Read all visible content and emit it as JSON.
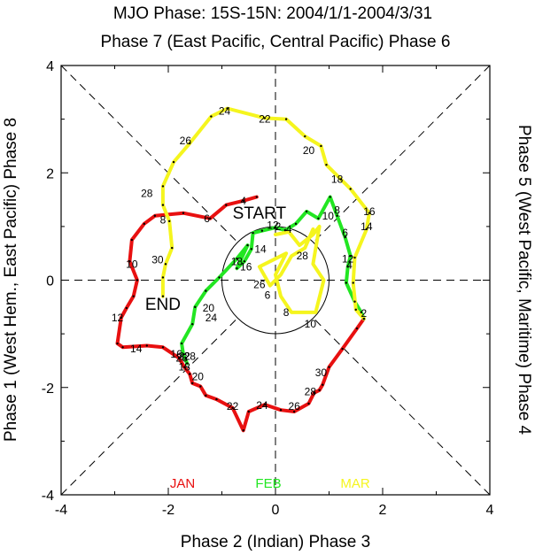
{
  "chart_data": {
    "type": "line",
    "title": "MJO Phase: 15S-15N: 2004/1/1-2004/3/31",
    "subtitle_top": "Phase 7 (East Pacific, Central Pacific) Phase 6",
    "xlabel": "Phase 2 (Indian) Phase 3",
    "ylabel_left": "Phase 1 (West Hem., East Pacific) Phase 8",
    "ylabel_right": "Phase 5 (West Pacific, Maritime) Phase 4",
    "xlim": [
      -4,
      4
    ],
    "ylim": [
      -4,
      4
    ],
    "xticks": [
      "-4",
      "-2",
      "0",
      "2",
      "4"
    ],
    "yticks": [
      "-4",
      "-2",
      "0",
      "2",
      "4"
    ],
    "circle_radius": 1,
    "start_label": "START",
    "end_label": "END",
    "legend": [
      "JAN",
      "FEB",
      "MAR"
    ],
    "series": [
      {
        "name": "JAN",
        "color": "#e81010",
        "x": [
          -0.35,
          -0.6,
          -0.92,
          -1.22,
          -1.72,
          -2.25,
          -2.45,
          -2.68,
          -2.72,
          -2.58,
          -2.65,
          -2.78,
          -2.88,
          -2.95,
          -2.85,
          -2.4,
          -2.1,
          -1.8,
          -1.7,
          -1.6,
          -1.55,
          -1.4,
          -1.3,
          -1.1,
          -0.8,
          -0.6,
          -0.5,
          -0.2,
          0.1,
          0.35,
          0.62,
          0.72,
          0.82,
          0.88,
          1.0,
          1.25,
          1.52,
          1.65
        ],
        "y": [
          1.55,
          1.48,
          1.4,
          1.15,
          1.25,
          1.2,
          1.05,
          0.75,
          0.35,
          0.0,
          -0.3,
          -0.52,
          -0.7,
          -1.18,
          -1.25,
          -1.22,
          -1.25,
          -1.45,
          -1.62,
          -1.75,
          -1.92,
          -1.98,
          -2.15,
          -2.22,
          -2.38,
          -2.8,
          -2.45,
          -2.32,
          -2.42,
          -2.45,
          -2.3,
          -2.1,
          -2.05,
          -1.95,
          -1.62,
          -1.28,
          -0.9,
          -0.72
        ],
        "labels": [
          {
            "text": "4",
            "x": -0.6,
            "y": 1.48
          },
          {
            "text": "6",
            "x": -1.28,
            "y": 1.15
          },
          {
            "text": "8",
            "x": -2.1,
            "y": 1.12
          },
          {
            "text": "10",
            "x": -2.68,
            "y": 0.3
          },
          {
            "text": "12",
            "x": -2.95,
            "y": -0.7
          },
          {
            "text": "14",
            "x": -2.6,
            "y": -1.28
          },
          {
            "text": "16",
            "x": -1.85,
            "y": -1.38
          },
          {
            "text": "18",
            "x": -1.7,
            "y": -1.62
          },
          {
            "text": "20",
            "x": -1.45,
            "y": -1.8
          },
          {
            "text": "22",
            "x": -0.8,
            "y": -2.35
          },
          {
            "text": "24",
            "x": -0.25,
            "y": -2.33
          },
          {
            "text": "26",
            "x": 0.35,
            "y": -2.35
          },
          {
            "text": "28",
            "x": 0.65,
            "y": -2.08
          },
          {
            "text": "30",
            "x": 0.85,
            "y": -1.72
          }
        ]
      },
      {
        "name": "FEB",
        "color": "#22e622",
        "x": [
          1.65,
          1.6,
          1.48,
          1.32,
          1.35,
          1.4,
          1.3,
          1.15,
          1.02,
          0.8,
          0.58,
          0.38,
          0.18,
          0.0,
          -0.25,
          -0.42,
          -0.45,
          -0.58,
          -0.72,
          -0.52,
          -0.72,
          -1.05,
          -1.3,
          -1.5,
          -1.55,
          -1.75,
          -1.72,
          -1.65
        ],
        "y": [
          -0.72,
          -0.6,
          -0.4,
          -0.05,
          0.25,
          0.45,
          0.8,
          1.2,
          1.55,
          1.15,
          1.28,
          1.05,
          0.93,
          0.98,
          0.92,
          0.88,
          0.58,
          0.35,
          0.22,
          0.65,
          0.4,
          0.05,
          -0.2,
          -0.5,
          -0.82,
          -1.18,
          -1.38,
          -1.55
        ],
        "labels": [
          {
            "text": "2",
            "x": 1.65,
            "y": -0.62
          },
          {
            "text": "4",
            "x": 1.38,
            "y": 0.28
          },
          {
            "text": "6",
            "x": 1.3,
            "y": 0.88
          },
          {
            "text": "8",
            "x": 1.15,
            "y": 1.3
          },
          {
            "text": "10",
            "x": 0.98,
            "y": 1.2
          },
          {
            "text": "12",
            "x": -0.05,
            "y": 1.02
          },
          {
            "text": "14",
            "x": -0.28,
            "y": 0.58
          },
          {
            "text": "16",
            "x": -0.55,
            "y": 0.25
          },
          {
            "text": "18",
            "x": -0.72,
            "y": 0.35
          },
          {
            "text": "20",
            "x": -1.25,
            "y": -0.52
          },
          {
            "text": "22",
            "x": -1.7,
            "y": -1.42
          },
          {
            "text": "24",
            "x": -1.2,
            "y": -0.7
          },
          {
            "text": "26",
            "x": -1.75,
            "y": -1.45
          },
          {
            "text": "28",
            "x": -1.6,
            "y": -1.42
          }
        ]
      },
      {
        "name": "MAR",
        "color": "#f5f51e",
        "x": [
          1.65,
          1.5,
          1.45,
          1.48,
          1.7,
          1.75,
          1.4,
          1.22,
          0.95,
          0.85,
          0.55,
          0.2,
          -0.2,
          -0.9,
          -1.2,
          -1.6,
          -1.9,
          -2.1,
          -2.1,
          -1.98,
          -1.93,
          -2.05,
          -2.1,
          -2.1
        ],
        "y": [
          -0.72,
          -0.55,
          -0.05,
          0.42,
          0.95,
          1.25,
          1.7,
          1.88,
          2.15,
          2.5,
          2.68,
          3.0,
          3.02,
          3.2,
          3.05,
          2.55,
          2.2,
          1.75,
          1.4,
          1.1,
          0.6,
          0.3,
          0.05,
          -0.3
        ],
        "labels": [
          {
            "text": "12",
            "x": 1.35,
            "y": 0.4
          },
          {
            "text": "14",
            "x": 1.7,
            "y": 1.0
          },
          {
            "text": "16",
            "x": 1.75,
            "y": 1.28
          },
          {
            "text": "18",
            "x": 1.15,
            "y": 1.88
          },
          {
            "text": "20",
            "x": 0.62,
            "y": 2.42
          },
          {
            "text": "22",
            "x": -0.2,
            "y": 3.0
          },
          {
            "text": "24",
            "x": -0.95,
            "y": 3.15
          },
          {
            "text": "26",
            "x": -1.68,
            "y": 2.6
          },
          {
            "text": "28",
            "x": -2.4,
            "y": 1.62
          },
          {
            "text": "30",
            "x": -2.2,
            "y": 0.38
          },
          {
            "text": "2",
            "x": 0.05,
            "y": 1.0
          },
          {
            "text": "4",
            "x": 0.25,
            "y": 0.95
          },
          {
            "text": "6",
            "x": -0.15,
            "y": -0.28
          },
          {
            "text": "8",
            "x": 0.2,
            "y": -0.6
          },
          {
            "text": "10",
            "x": 0.65,
            "y": -0.82
          },
          {
            "text": "28",
            "x": 0.5,
            "y": 0.45
          },
          {
            "text": "26",
            "x": -0.3,
            "y": -0.08
          }
        ]
      }
    ],
    "mar_inner": {
      "x": [
        0.0,
        0.25,
        0.45,
        0.7,
        0.82,
        0.7,
        0.9,
        0.75,
        0.3,
        0.1,
        0.0,
        0.2,
        -0.3,
        -0.1,
        0.1,
        0.3,
        0.55,
        0.7
      ],
      "y": [
        0.85,
        0.9,
        0.65,
        0.85,
        1.0,
        0.3,
        0.0,
        -0.6,
        -0.6,
        -0.3,
        0.1,
        0.5,
        0.25,
        -0.1,
        0.1,
        0.45,
        0.6,
        0.95
      ]
    }
  }
}
